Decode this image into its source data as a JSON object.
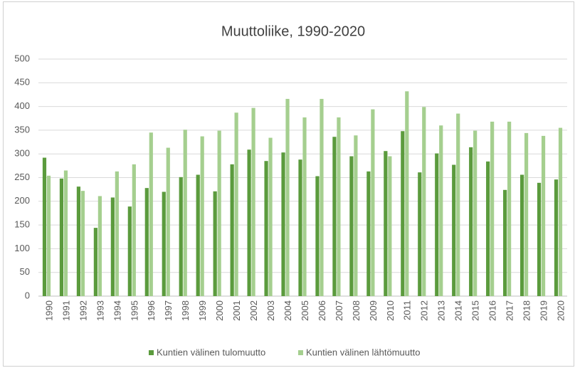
{
  "chart_data": {
    "type": "bar",
    "title": "Muuttoliike, 1990-2020",
    "categories": [
      "1990",
      "1991",
      "1992",
      "1993",
      "1994",
      "1995",
      "1996",
      "1997",
      "1998",
      "1999",
      "2000",
      "2001",
      "2002",
      "2003",
      "2004",
      "2005",
      "2006",
      "2007",
      "2008",
      "2009",
      "2010",
      "2011",
      "2012",
      "2013",
      "2014",
      "2015",
      "2016",
      "2017",
      "2018",
      "2019",
      "2020"
    ],
    "series": [
      {
        "name": "Kuntien välinen tulomuutto",
        "color": "#5b9b3d",
        "values": [
          292,
          248,
          231,
          144,
          208,
          189,
          228,
          220,
          251,
          256,
          221,
          278,
          309,
          285,
          303,
          288,
          253,
          336,
          295,
          263,
          306,
          348,
          261,
          301,
          277,
          314,
          284,
          224,
          256,
          239,
          246
        ]
      },
      {
        "name": "Kuntien välinen lähtömuutto",
        "color": "#a5cf8f",
        "values": [
          254,
          265,
          222,
          211,
          263,
          278,
          345,
          313,
          351,
          337,
          349,
          387,
          397,
          334,
          416,
          377,
          416,
          377,
          339,
          394,
          295,
          432,
          399,
          360,
          385,
          349,
          368,
          368,
          344,
          338,
          355
        ]
      }
    ],
    "ylim": [
      0,
      500
    ],
    "yticks": [
      0,
      50,
      100,
      150,
      200,
      250,
      300,
      350,
      400,
      450,
      500
    ],
    "grid": true,
    "legend": "bottom"
  }
}
